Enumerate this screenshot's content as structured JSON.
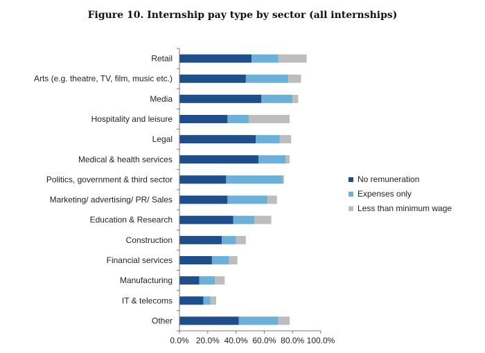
{
  "chart_data": {
    "type": "bar",
    "orientation": "horizontal",
    "stacked": true,
    "title": "Figure 10. Internship pay type by sector (all internships)",
    "categories": [
      "Retail",
      "Arts (e.g. theatre, TV, film, music etc.)",
      "Media",
      "Hospitality and leisure",
      "Legal",
      "Medical & health services",
      "Politics, government & third sector",
      "Marketing/ advertising/ PR/ Sales",
      "Education & Research",
      "Construction",
      "Financial services",
      "Manufacturing",
      "IT & telecoms",
      "Other"
    ],
    "series": [
      {
        "name": "No remuneration",
        "color": "#1f4e8c",
        "values": [
          51,
          47,
          58,
          34,
          54,
          56,
          33,
          34,
          38,
          30,
          23,
          14,
          17,
          42
        ]
      },
      {
        "name": "Expenses only",
        "color": "#6ab0d9",
        "values": [
          19,
          30,
          22,
          15,
          17,
          19,
          40,
          28,
          15,
          10,
          12,
          11,
          5,
          28
        ]
      },
      {
        "name": "Less than minimum wage",
        "color": "#bdbdbd",
        "values": [
          20,
          9,
          4,
          29,
          8,
          3,
          1,
          7,
          12,
          7,
          6,
          7,
          4,
          8
        ]
      }
    ],
    "xlim": [
      0,
      100
    ],
    "xticks": [
      "0.0%",
      "20.0%",
      "40.0%",
      "60.0%",
      "80.0%",
      "100.0%"
    ],
    "legend_position": "right",
    "grid": false
  }
}
